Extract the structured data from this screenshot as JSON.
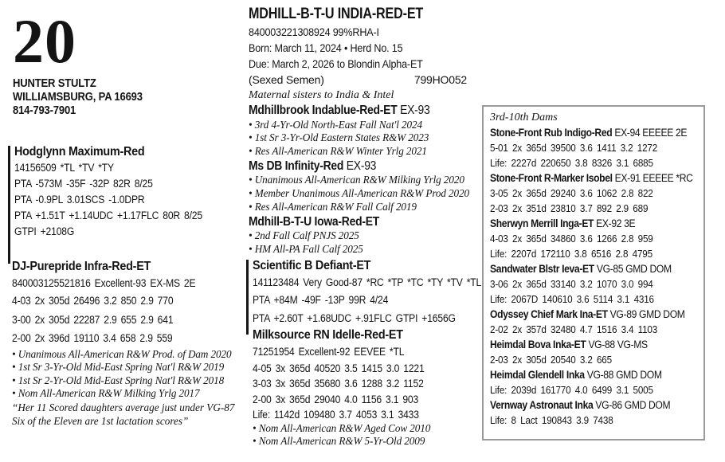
{
  "colors": {
    "text": "#141414",
    "box_border": "#9a9a9a"
  },
  "lot": {
    "number": "20",
    "consignor_name": "HUNTER STULTZ",
    "consignor_location": "WILLIAMSBURG, PA 16693",
    "consignor_phone": "814-793-7901"
  },
  "animal": {
    "name": "MDHILL-B-T-U INDIA-RED-ET",
    "id_line": "840003221308924 99%RHA-I",
    "born_line": "Born:  March 11, 2024 • Herd No. 15",
    "due_line": "Due:  March 2, 2026 to Blondin Alpha-ET",
    "sexed_note": "(Sexed Semen)",
    "service_code": "799HO052",
    "maternal_note": "Maternal sisters to India & Intel"
  },
  "sire": {
    "name": "Hodglynn Maximum-Red",
    "lines": [
      "14156509 *TL *TV *TY",
      "PTA -573M -35F -32P 82R 8/25",
      "PTA -0.9PL 3.01SCS -1.0DPR",
      "PTA +1.51T +1.14UDC +1.17FLC 80R 8/25",
      "GTPI +2108G"
    ]
  },
  "dam": {
    "name": "DJ-Purepride Infra-Red-ET",
    "reg_line": "840003125521816 Excellent-93 EX-MS 2E",
    "records": [
      "4-03 2x 305d 26496 3.2 850 2.9 770",
      "3-00 2x 305d 22287 2.9 655 2.9 641",
      "2-00 2x 396d 19110 3.4 658 2.9 559"
    ],
    "awards": [
      "Unanimous All-American R&W Prod. of Dam 2020",
      "1st Sr 3-Yr-Old Mid-East Spring Nat'l R&W 2019",
      "1st Sr 2-Yr-Old Mid-East Spring Nat'l R&W 2018",
      "Nom All-American R&W Milking Yrlg 2017"
    ],
    "quote": [
      "“Her 11 Scored daughters average just under VG-87",
      "Six of the Eleven are 1st lactation scores”"
    ]
  },
  "sisters": [
    {
      "name": "Mdhillbrook Indablue-Red-ET",
      "score": "EX-93",
      "awards": [
        "3rd 4-Yr-Old North-East Fall Nat'l 2024",
        "1st Sr 3-Yr-Old Eastern States R&W 2023",
        "Res All-American R&W Winter Yrlg 2021"
      ]
    },
    {
      "name": "Ms DB Infinity-Red",
      "score": "EX-93",
      "awards": [
        "Unanimous All-American R&W Milking Yrlg 2020",
        "Member Unanimous All-American R&W Prod 2020",
        "Res All-American R&W Fall Calf 2019"
      ]
    },
    {
      "name": "Mdhill-B-T-U Iowa-Red-ET",
      "score": "",
      "awards": [
        "2nd Fall Calf PNJS 2025",
        "HM All-PA Fall Calf 2025"
      ]
    }
  ],
  "sire2": {
    "name": "Scientific B Defiant-ET",
    "lines": [
      "141123484 Very Good-87 *RC *TP *TC *TY *TV *TL",
      "PTA +84M -49F -13P 99R 4/24",
      "PTA +2.60T +1.68UDC +.91FLC GTPI +1656G"
    ]
  },
  "dam2": {
    "name": "Milksource RN Idelle-Red-ET",
    "reg_line": "71251954 Excellent-92 EEVEE *TL",
    "records": [
      "4-05 3x 365d 40520 3.5 1415 3.0 1221",
      "3-03 3x 365d 35680 3.6 1288 3.2 1152",
      "2-00 3x 365d 29040 4.0 1156 3.1 903",
      "Life: 1142d 109480 3.7 4053 3.1 3433"
    ],
    "awards": [
      "Nom All-American R&W Aged Cow 2010",
      "Nom All-American R&W 5-Yr-Old 2009"
    ]
  },
  "right_box": {
    "title": "3rd-10th Dams",
    "dams": [
      {
        "name": "Stone-Front Rub Indigo-Red",
        "score": "EX-94 EEEEE 2E",
        "records": [
          "5-01 2x 365d 39500 3.6 1411 3.2 1272",
          "Life: 2227d 220650 3.8 8326 3.1 6885"
        ]
      },
      {
        "name": "Stone-Front R-Marker Isobel",
        "score": "EX-91 EEEEE *RC",
        "records": [
          "3-05 2x 365d 29240 3.6 1062 2.8 822",
          "2-03 2x 351d 23810 3.7 892 2.9 689"
        ]
      },
      {
        "name": "Sherwyn Merrill Inga-ET",
        "score": "EX-92 3E",
        "records": [
          "4-03 2x 365d 34860 3.6 1266 2.8 959",
          "Life: 2207d 172110 3.8 6516 2.8 4795"
        ]
      },
      {
        "name": "Sandwater Blstr Ieva-ET",
        "score": "VG-85 GMD DOM",
        "records": [
          "3-06 2x 365d 33140 3.2 1070 3.0 994",
          "Life: 2067D 140610 3.6 5114 3.1 4316"
        ]
      },
      {
        "name": "Odyssey Chief Mark Ina-ET",
        "score": "VG-89 GMD DOM",
        "records": [
          "2-02 2x 357d 32480 4.7 1516 3.4 1103"
        ]
      },
      {
        "name": "Heimdal Bova Inka-ET",
        "score": "VG-88  VG-MS",
        "records": [
          "2-03 2x 305d 20540 3.2 665"
        ]
      },
      {
        "name": "Heimdal Glendell Inka",
        "score": "VG-88  GMD DOM",
        "records": [
          "Life: 2039d 161770 4.0 6499 3.1 5005"
        ]
      },
      {
        "name": "Vernway Astronaut Inka",
        "score": "VG-86 GMD DOM",
        "records": [
          "Life: 8 Lact 190843 3.9 7438"
        ]
      }
    ]
  }
}
